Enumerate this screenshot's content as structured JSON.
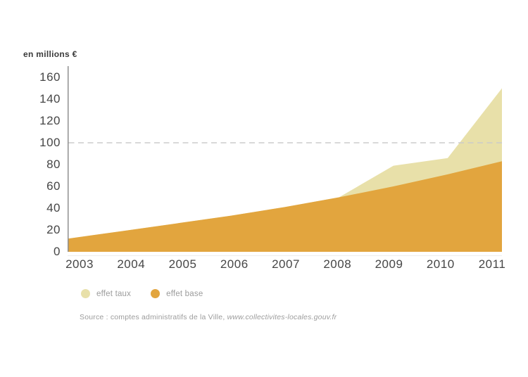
{
  "chart": {
    "unit_label": "en millions €",
    "y_axis_tick_labels": [
      "160",
      "140",
      "120",
      "100",
      "80",
      "60",
      "40",
      "20",
      "0"
    ]
  },
  "chart_data": {
    "type": "area",
    "stacked": true,
    "x": [
      2003,
      2004,
      2005,
      2006,
      2007,
      2008,
      2009,
      2010,
      2011
    ],
    "series": [
      {
        "name": "effet base",
        "color": "#e2a53e",
        "values": [
          12,
          19,
          26,
          33,
          41,
          50,
          60,
          71,
          83
        ]
      },
      {
        "name": "effet taux",
        "color": "#e8e0a9",
        "values": [
          0,
          0,
          0,
          0,
          0,
          0,
          19,
          15,
          67
        ]
      }
    ],
    "stack_totals": [
      12,
      19,
      26,
      33,
      41,
      50,
      79,
      86,
      150
    ],
    "title": "",
    "xlabel": "",
    "ylabel": "en millions €",
    "ylim": [
      0,
      160
    ],
    "y_ticks": [
      0,
      20,
      40,
      60,
      80,
      100,
      120,
      140,
      160
    ],
    "reference_line_y": 100,
    "grid": "none (single dashed horizontal reference line at y=100)",
    "legend_position": "bottom-left",
    "colors": {
      "axis_line": "#8f8f8f",
      "dashed_line": "#cbcbcb",
      "tick_text": "#464646",
      "muted_text": "#9c9c9c"
    }
  },
  "legend": {
    "items": [
      {
        "label": "effet taux",
        "color": "#e8e0a9"
      },
      {
        "label": "effet base",
        "color": "#e2a53e"
      }
    ]
  },
  "source": {
    "prefix": "Source : comptes administratifs de la Ville, ",
    "reference": "www.collectivites-locales.gouv.fr"
  }
}
